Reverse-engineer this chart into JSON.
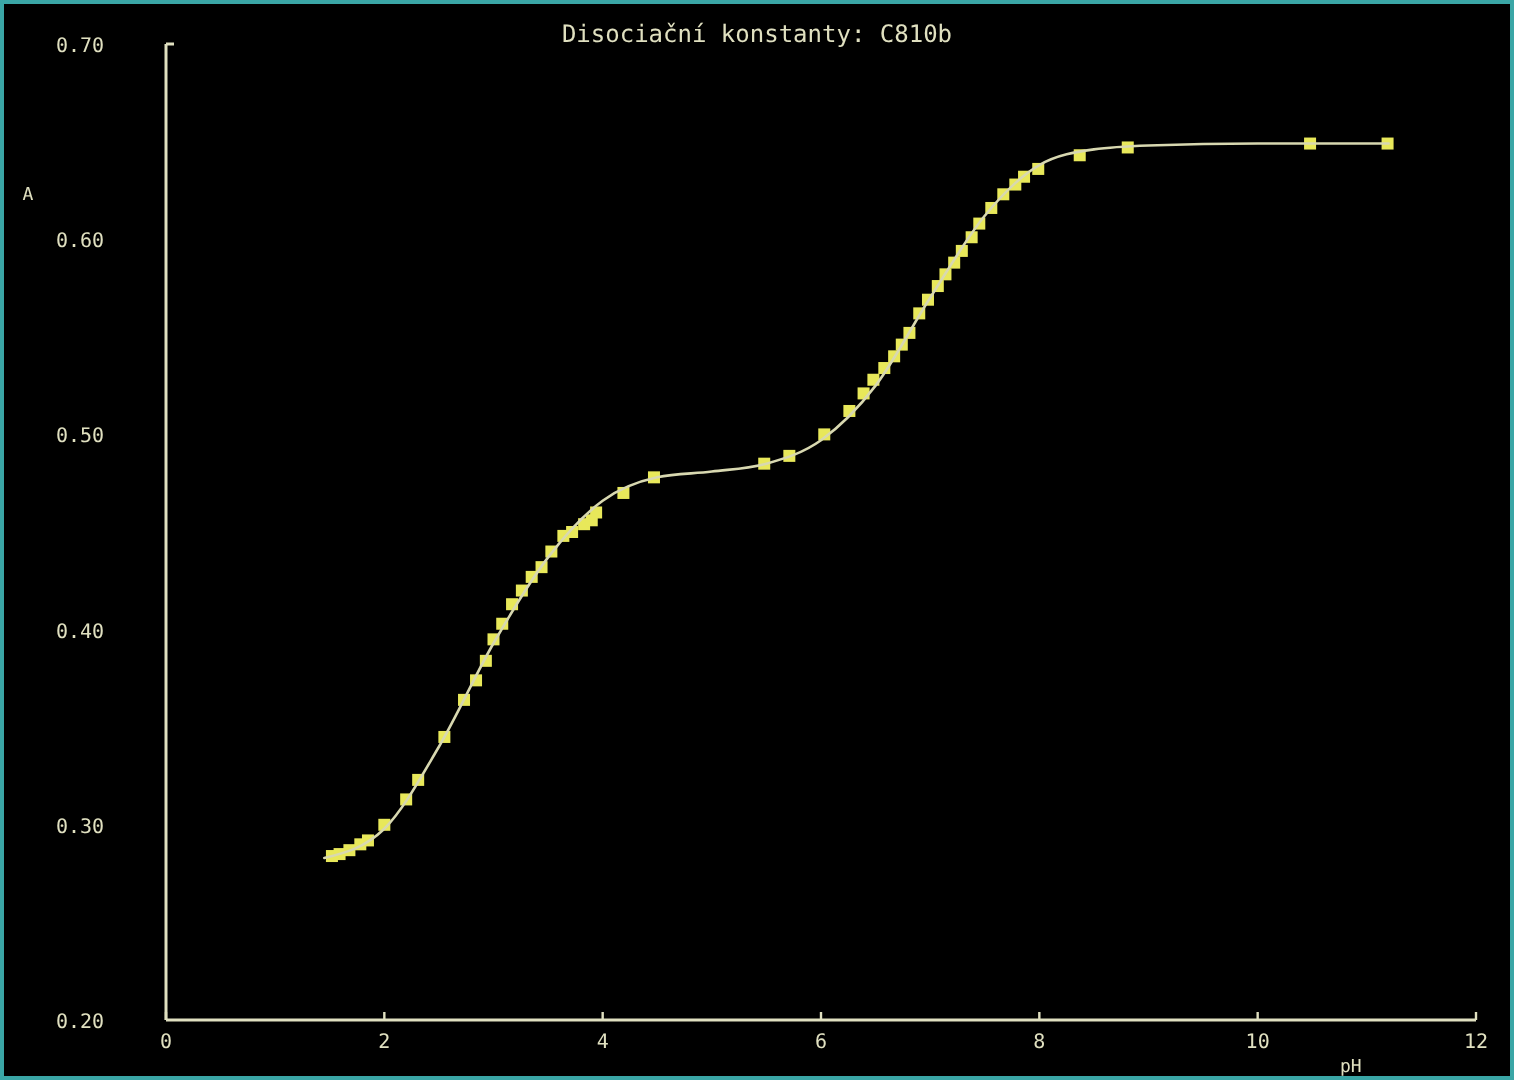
{
  "chart_data": {
    "type": "scatter",
    "title": "Disociační konstanty: C810b",
    "xlabel": "pH",
    "ylabel": "A",
    "xlim": [
      0,
      12
    ],
    "xticks": [
      0,
      2,
      4,
      6,
      8,
      10,
      12
    ],
    "ylim": [
      0.2,
      0.7
    ],
    "yticks": [
      {
        "value": 0.2,
        "label": "0.20"
      },
      {
        "value": 0.3,
        "label": "0.30"
      },
      {
        "value": 0.4,
        "label": "0.40"
      },
      {
        "value": 0.5,
        "label": "0.50"
      },
      {
        "value": 0.6,
        "label": "0.60"
      },
      {
        "value": 0.7,
        "label": "0.70"
      }
    ],
    "grid": false,
    "marker": "square",
    "series": [
      {
        "color": "#e8e85a",
        "x": [
          1.52,
          1.59,
          1.68,
          1.78,
          1.85,
          2.0,
          2.2,
          2.31,
          2.55,
          2.73,
          2.84,
          2.93,
          3.0,
          3.08,
          3.17,
          3.26,
          3.35,
          3.44,
          3.53,
          3.64,
          3.72,
          3.83,
          3.9,
          3.94,
          4.19,
          4.47,
          5.48,
          5.71,
          6.03,
          6.26,
          6.39,
          6.48,
          6.58,
          6.67,
          6.74,
          6.81,
          6.9,
          6.98,
          7.07,
          7.14,
          7.22,
          7.29,
          7.38,
          7.45,
          7.56,
          7.67,
          7.78,
          7.86,
          7.99,
          8.37,
          8.81,
          10.48,
          11.19
        ],
        "values": [
          0.284,
          0.285,
          0.287,
          0.29,
          0.292,
          0.3,
          0.313,
          0.323,
          0.345,
          0.364,
          0.374,
          0.384,
          0.395,
          0.403,
          0.413,
          0.42,
          0.427,
          0.432,
          0.44,
          0.448,
          0.45,
          0.454,
          0.456,
          0.46,
          0.47,
          0.478,
          0.485,
          0.489,
          0.5,
          0.512,
          0.521,
          0.528,
          0.534,
          0.54,
          0.546,
          0.552,
          0.562,
          0.569,
          0.576,
          0.582,
          0.588,
          0.594,
          0.601,
          0.608,
          0.616,
          0.623,
          0.628,
          0.632,
          0.636,
          0.643,
          0.647,
          0.649,
          0.649
        ]
      },
      {
        "type": "line",
        "color": "#d8d8b0",
        "marker": "none",
        "line_style": "solid",
        "x": [
          1.45,
          2.0,
          2.5,
          3.0,
          3.5,
          4.0,
          4.5,
          5.0,
          5.5,
          6.0,
          6.5,
          7.0,
          7.5,
          8.0,
          8.5,
          9.0,
          10.0,
          11.2
        ],
        "values": [
          0.283,
          0.298,
          0.34,
          0.393,
          0.437,
          0.466,
          0.478,
          0.481,
          0.485,
          0.497,
          0.525,
          0.57,
          0.612,
          0.638,
          0.646,
          0.648,
          0.649,
          0.649
        ]
      }
    ]
  }
}
